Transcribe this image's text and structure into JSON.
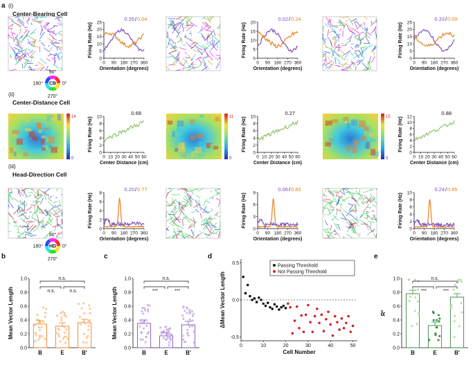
{
  "panel_letters": [
    "a",
    "b",
    "c",
    "d",
    "e"
  ],
  "rows": [
    {
      "roman": "(i)",
      "title": "Center-Bearing Cell",
      "xlabel": "Orientation (degrees)",
      "ylabel": "Firing Rate (Hz)",
      "xticks": [
        "0",
        "90",
        "180",
        "270",
        "360"
      ],
      "cells": [
        {
          "yticks": [
            "0",
            "5",
            "10",
            "15",
            "20",
            "25"
          ],
          "ann1": "0.35",
          "ann2": "0.04"
        },
        {
          "yticks": [
            "0",
            "5",
            "10",
            "15",
            "20"
          ],
          "ann1": "0.02",
          "ann2": "0.24"
        },
        {
          "yticks": [
            "0",
            "5",
            "10",
            "15",
            "20",
            "25"
          ],
          "ann1": "0.33",
          "ann2": "0.09"
        }
      ]
    },
    {
      "roman": "(ii)",
      "title": "Center-Distance Cell",
      "xlabel": "Center Distance (cm)",
      "ylabel": "Firing Rate (Hz)",
      "xticks": [
        "0",
        "10",
        "20",
        "30",
        "40",
        "50",
        "60"
      ],
      "cells": [
        {
          "yticks": [
            "0",
            "2",
            "4",
            "6",
            "8",
            "10"
          ],
          "ann1": "0.68",
          "cbar_max": "14",
          "cbar_min": "0"
        },
        {
          "yticks": [
            "0",
            "2",
            "4",
            "6",
            "8",
            "10"
          ],
          "ann1": "0.27",
          "cbar_max": "11",
          "cbar_min": "0"
        },
        {
          "yticks": [
            "0",
            "2",
            "4",
            "6",
            "8",
            "10",
            "12"
          ],
          "ann1": "0.88",
          "cbar_max": "15",
          "cbar_min": "0"
        }
      ]
    },
    {
      "roman": "(iii)",
      "title": "Head-Direction Cell",
      "xlabel": "Orientation (degrees)",
      "ylabel": "Firing Rate (Hz)",
      "xticks": [
        "0",
        "90",
        "180",
        "270",
        "360"
      ],
      "cells": [
        {
          "yticks": [
            "0",
            "2",
            "4",
            "6",
            "8"
          ],
          "ann1": "0.20",
          "ann2": "0.77"
        },
        {
          "yticks": [
            "0",
            "3",
            "6",
            "9"
          ],
          "ann1": "0.06",
          "ann2": "0.83"
        },
        {
          "yticks": [
            "0",
            "2",
            "4",
            "6",
            "8",
            "10"
          ],
          "ann1": "0.24",
          "ann2": "0.85"
        }
      ]
    }
  ],
  "wheels": [
    {
      "center": "CB",
      "top": "90°",
      "left": "180°",
      "right": "0°",
      "bottom": "270°"
    },
    {
      "center": "HD",
      "top": "90°",
      "left": "180°",
      "right": "0°",
      "bottom": "270°"
    }
  ],
  "colors": {
    "purple": "#7b4fbf",
    "orange": "#e8801f",
    "green": "#8cc56a",
    "red": "#d42020",
    "darkgreen": "#2f8a3a",
    "lightorange": "#f6c394",
    "lightpurple": "#c8b4e6",
    "lightgreen": "#b7dcaa"
  },
  "chart_data": [
    {
      "type": "bar",
      "panel": "b",
      "categories": [
        "B",
        "E",
        "B'"
      ],
      "values": [
        0.34,
        0.31,
        0.36
      ],
      "ylabel": "Mean Vector Length",
      "yticks": [
        "0.0",
        "0.2",
        "0.4",
        "0.6",
        "0.8",
        "1.0"
      ],
      "ylim": [
        0,
        1.0
      ],
      "sig": {
        "top": "n.s.",
        "left": "n.s.",
        "right": "n.s."
      }
    },
    {
      "type": "bar",
      "panel": "c",
      "categories": [
        "B",
        "E",
        "B'"
      ],
      "values": [
        0.35,
        0.17,
        0.33
      ],
      "ylabel": "Mean Vector Length",
      "yticks": [
        "0.0",
        "0.2",
        "0.4",
        "0.6",
        "0.8",
        "1.0"
      ],
      "ylim": [
        0,
        1.0
      ],
      "sig": {
        "top": "n.s.",
        "left": "***",
        "right": "***"
      }
    },
    {
      "type": "scatter",
      "panel": "d",
      "xlabel": "Cell Number",
      "ylabel": "ΔMean Vector Length",
      "xticks": [
        "0",
        "10",
        "20",
        "30",
        "40",
        "50"
      ],
      "yticks": [
        "-0.5",
        "0.0",
        "0.5"
      ],
      "xlim": [
        0,
        52
      ],
      "ylim": [
        -0.55,
        0.55
      ],
      "legend": [
        "Passing Threshold",
        "Not Passing Threshold"
      ],
      "series": [
        {
          "name": "Passing Threshold",
          "x": [
            1,
            2,
            3,
            4,
            5,
            6,
            7,
            8,
            9,
            10,
            11,
            12,
            13,
            14,
            15,
            16,
            17,
            18,
            19,
            20
          ],
          "y": [
            0.31,
            0.09,
            0.2,
            0.05,
            0.0,
            0.02,
            -0.03,
            0.03,
            0.0,
            -0.05,
            -0.08,
            -0.04,
            -0.1,
            -0.12,
            -0.06,
            -0.09,
            -0.13,
            -0.1,
            -0.08,
            -0.11
          ]
        },
        {
          "name": "Not Passing Threshold",
          "x": [
            21,
            22,
            23,
            24,
            25,
            26,
            27,
            28,
            29,
            30,
            31,
            32,
            33,
            34,
            35,
            36,
            37,
            38,
            39,
            40,
            41,
            42,
            43,
            44,
            45,
            46,
            47,
            48,
            49,
            50
          ],
          "y": [
            -0.05,
            -0.1,
            -0.45,
            -0.28,
            -0.09,
            -0.38,
            -0.21,
            -0.43,
            -0.2,
            -0.07,
            -0.3,
            -0.43,
            -0.22,
            -0.12,
            -0.31,
            -0.2,
            -0.42,
            -0.26,
            -0.16,
            -0.33,
            -0.48,
            -0.22,
            -0.3,
            -0.4,
            -0.25,
            -0.38,
            -0.31,
            -0.22,
            -0.43,
            -0.35
          ]
        }
      ]
    },
    {
      "type": "bar",
      "panel": "e",
      "categories": [
        "B",
        "E",
        "B'"
      ],
      "values": [
        0.78,
        0.32,
        0.73
      ],
      "ylabel": "R²",
      "yticks": [
        "0.0",
        "0.2",
        "0.4",
        "0.6",
        "0.8",
        "1.0"
      ],
      "ylim": [
        0,
        1.0
      ],
      "sig": {
        "top": "n.s.",
        "left": "***",
        "right": "***"
      }
    }
  ]
}
